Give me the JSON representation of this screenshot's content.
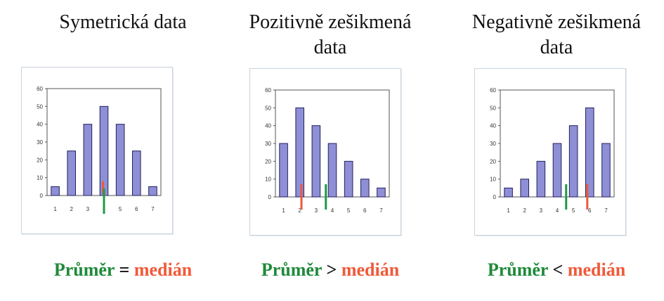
{
  "panels": [
    {
      "title_lines": [
        "Symetrická data"
      ],
      "operator": "="
    },
    {
      "title_lines": [
        "Pozitivně zešikmená",
        "data"
      ],
      "operator": ">"
    },
    {
      "title_lines": [
        "Negativně zešikmená",
        "data"
      ],
      "operator": "<"
    }
  ],
  "caption": {
    "mean_word": "Průměr",
    "median_word": "medián"
  },
  "colors": {
    "bar": "#8f8fd6",
    "bar_stroke": "#202060",
    "mean": "#1f9a46",
    "median": "#ea5a3c",
    "mean_text": "#1f8a3a",
    "median_text": "#f05a3a"
  },
  "chart_data": [
    {
      "type": "bar",
      "categories": [
        "1",
        "2",
        "3",
        "4",
        "5",
        "6",
        "7"
      ],
      "values": [
        5,
        25,
        40,
        50,
        40,
        25,
        5
      ],
      "ylim": [
        0,
        60
      ],
      "yticks": [
        0,
        10,
        20,
        30,
        40,
        50,
        60
      ],
      "x_tick_labels_shown": [
        "1",
        "2",
        "3",
        "",
        "5",
        "6",
        "7"
      ],
      "markers": [
        {
          "kind": "median",
          "x": 4,
          "color": "red"
        },
        {
          "kind": "mean",
          "x": 4,
          "color": "green"
        }
      ]
    },
    {
      "type": "bar",
      "categories": [
        "1",
        "2",
        "3",
        "4",
        "5",
        "6",
        "7"
      ],
      "values": [
        30,
        50,
        40,
        30,
        20,
        10,
        5
      ],
      "ylim": [
        0,
        60
      ],
      "yticks": [
        0,
        10,
        20,
        30,
        40,
        50,
        60
      ],
      "x_tick_labels_shown": [
        "1",
        "2",
        "3",
        "4",
        "5",
        "6",
        "7"
      ],
      "markers": [
        {
          "kind": "median",
          "x": 2.1,
          "color": "red"
        },
        {
          "kind": "mean",
          "x": 3.6,
          "color": "green"
        }
      ]
    },
    {
      "type": "bar",
      "categories": [
        "1",
        "2",
        "3",
        "4",
        "5",
        "6",
        "7"
      ],
      "values": [
        5,
        10,
        20,
        30,
        40,
        50,
        30
      ],
      "ylim": [
        0,
        60
      ],
      "yticks": [
        0,
        10,
        20,
        30,
        40,
        50,
        60
      ],
      "x_tick_labels_shown": [
        "1",
        "2",
        "3",
        "4",
        "5",
        "6",
        "7"
      ],
      "markers": [
        {
          "kind": "mean",
          "x": 4.55,
          "color": "green"
        },
        {
          "kind": "median",
          "x": 5.85,
          "color": "red"
        }
      ]
    }
  ]
}
